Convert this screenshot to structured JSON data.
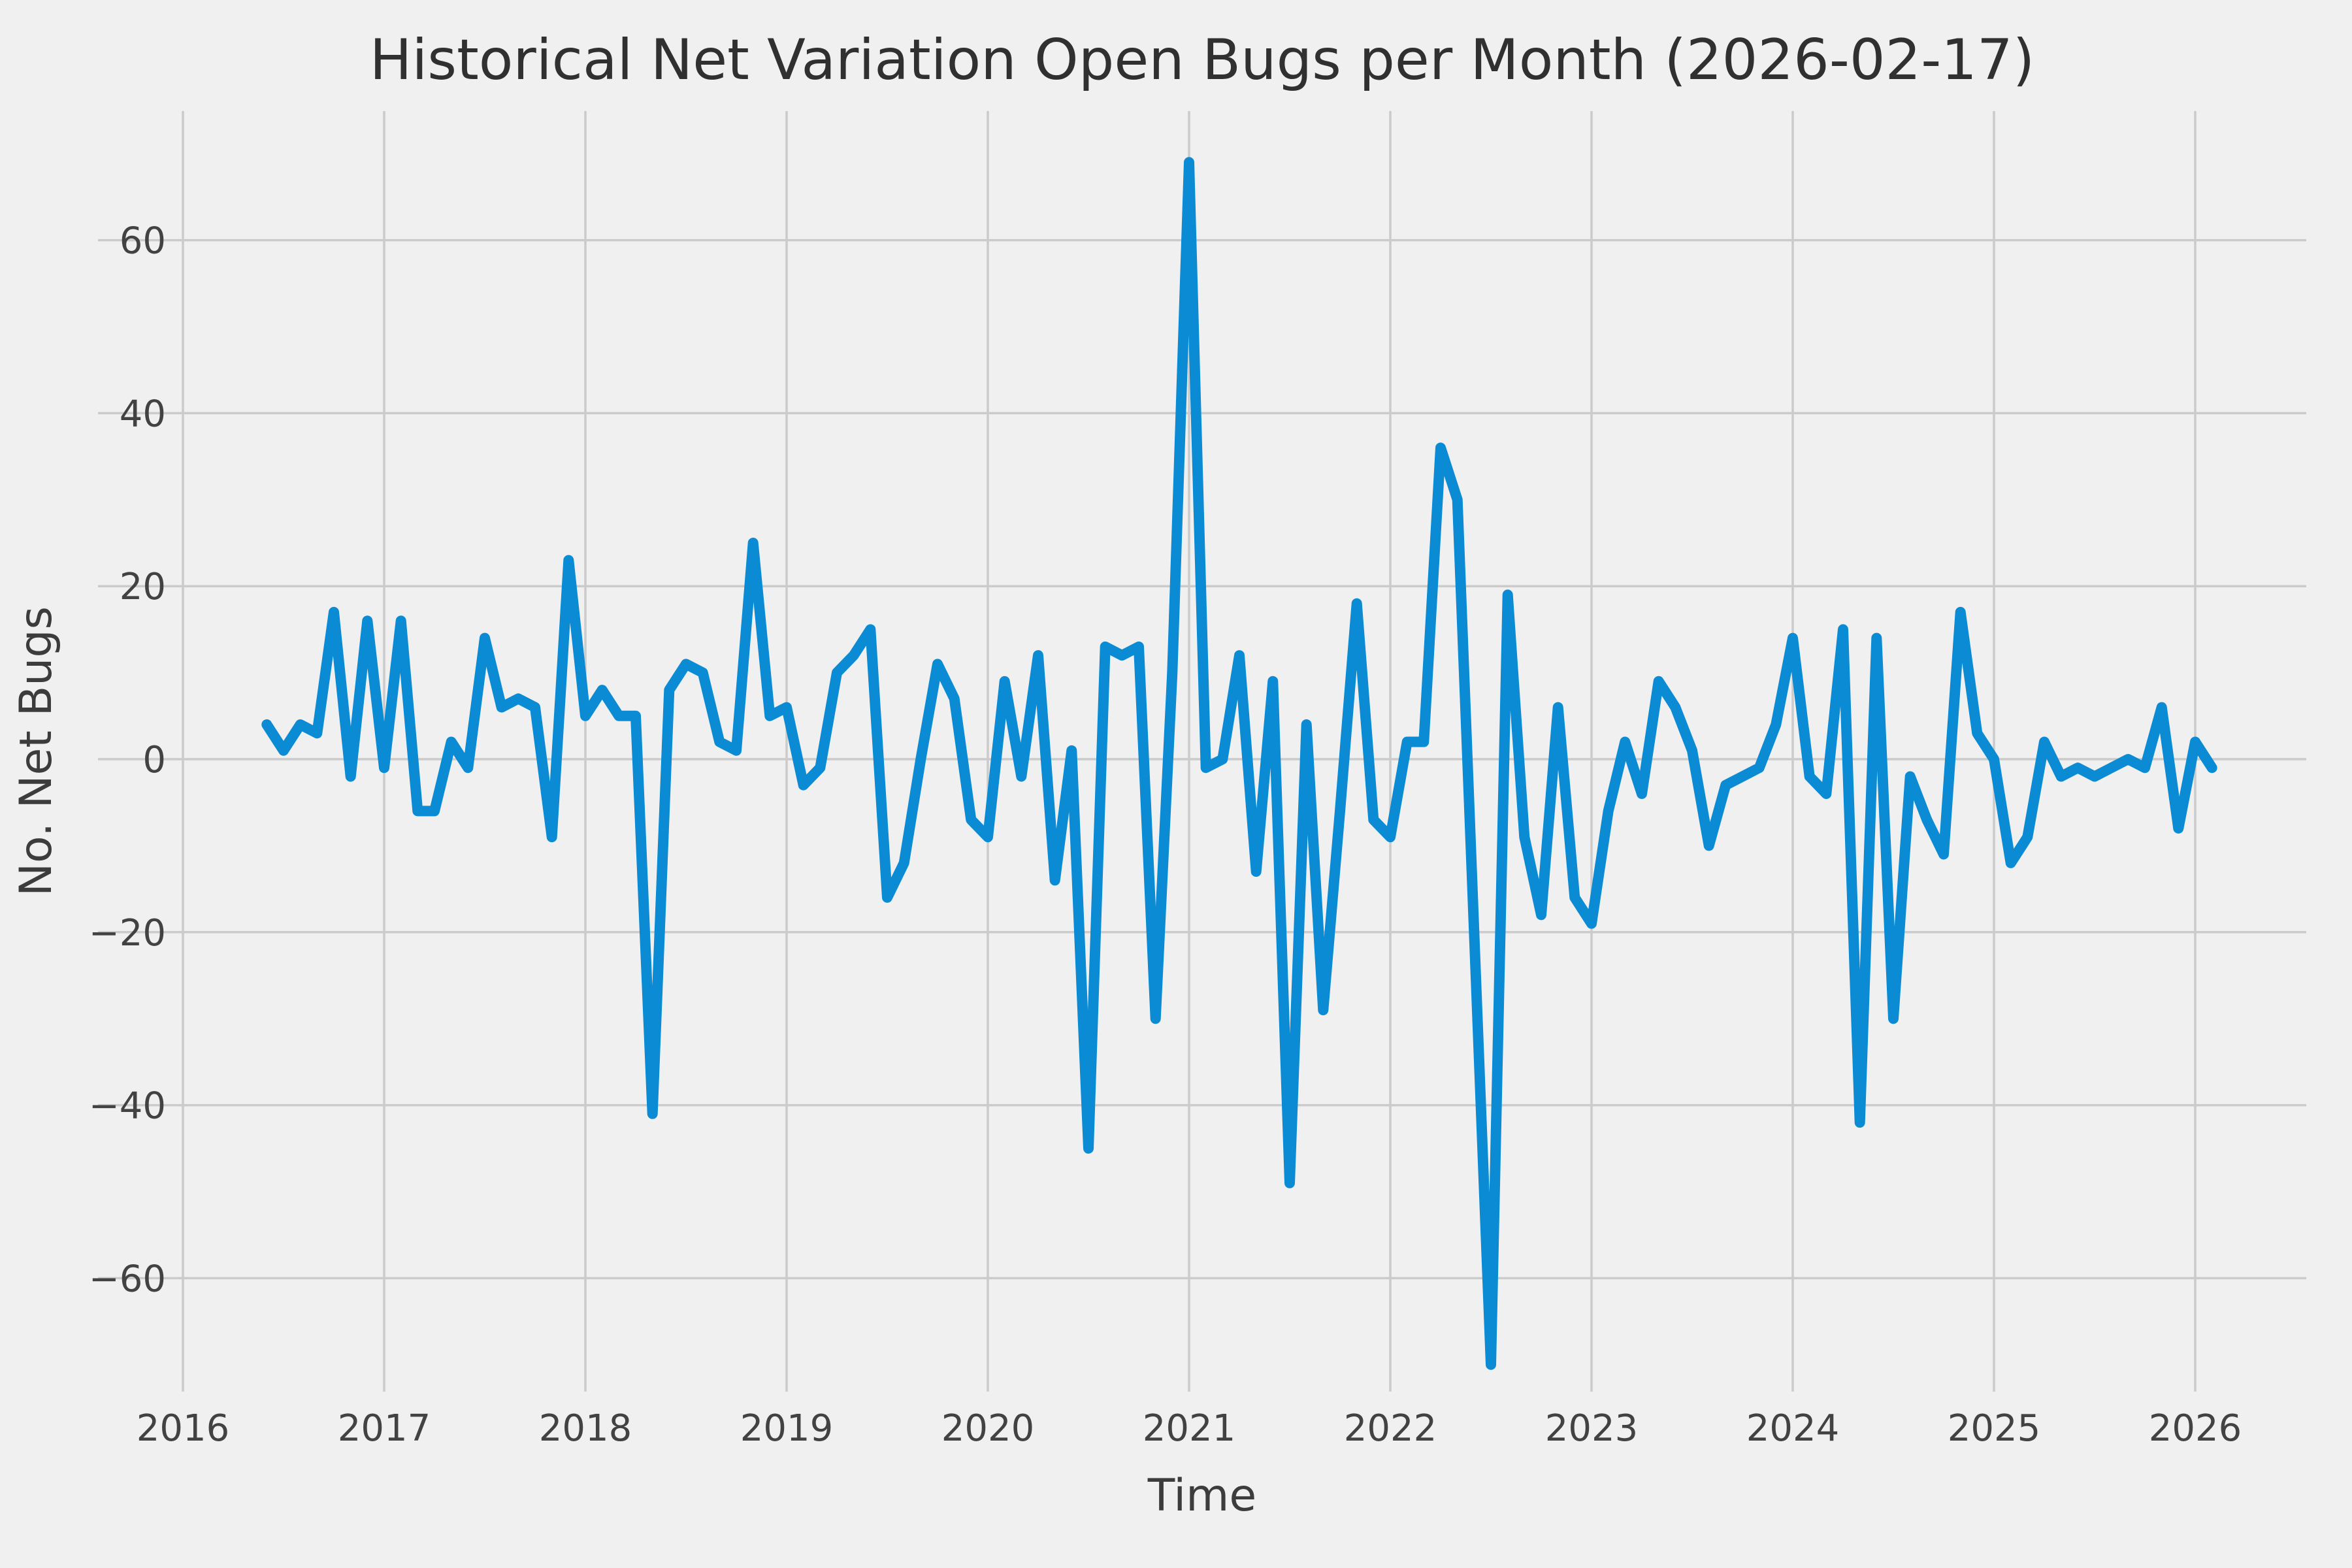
{
  "title": "Historical Net Variation Open Bugs per Month (2026-02-17)",
  "axes": {
    "xlabel": "Time",
    "ylabel": "No. Net Bugs",
    "x_tick_labels": [
      "2016",
      "2017",
      "2018",
      "2019",
      "2020",
      "2021",
      "2022",
      "2023",
      "2024",
      "2025",
      "2026"
    ],
    "y_tick_values": [
      60,
      40,
      20,
      0,
      -20,
      -40,
      -60
    ]
  },
  "style": {
    "background_color": "#f0f0f0",
    "grid_color": "#cbcbcb",
    "line_color": "#0b8bd4",
    "tick_text_color": "#424242",
    "title_color": "#303030"
  },
  "chart_data": {
    "type": "line",
    "title": "Historical Net Variation Open Bugs per Month (2026-02-17)",
    "xlabel": "Time",
    "ylabel": "No. Net Bugs",
    "x_unit": "month",
    "xlim_years": [
      2015.58,
      2026.55
    ],
    "ylim": [
      -73,
      75
    ],
    "grid": true,
    "legend": false,
    "series": [
      {
        "name": "net-variation-open-bugs",
        "color": "#0b8bd4",
        "x": [
          "2016-06",
          "2016-07",
          "2016-08",
          "2016-09",
          "2016-10",
          "2016-11",
          "2016-12",
          "2017-01",
          "2017-02",
          "2017-03",
          "2017-04",
          "2017-05",
          "2017-06",
          "2017-07",
          "2017-08",
          "2017-09",
          "2017-10",
          "2017-11",
          "2017-12",
          "2018-01",
          "2018-02",
          "2018-03",
          "2018-04",
          "2018-05",
          "2018-06",
          "2018-07",
          "2018-08",
          "2018-09",
          "2018-10",
          "2018-11",
          "2018-12",
          "2019-01",
          "2019-02",
          "2019-03",
          "2019-04",
          "2019-05",
          "2019-06",
          "2019-07",
          "2019-08",
          "2019-09",
          "2019-10",
          "2019-11",
          "2019-12",
          "2020-01",
          "2020-02",
          "2020-03",
          "2020-04",
          "2020-05",
          "2020-06",
          "2020-07",
          "2020-08",
          "2020-09",
          "2020-10",
          "2020-11",
          "2020-12",
          "2021-01",
          "2021-02",
          "2021-03",
          "2021-04",
          "2021-05",
          "2021-06",
          "2021-07",
          "2021-08",
          "2021-09",
          "2021-10",
          "2021-11",
          "2021-12",
          "2022-01",
          "2022-02",
          "2022-03",
          "2022-04",
          "2022-05",
          "2022-06",
          "2022-07",
          "2022-08",
          "2022-09",
          "2022-10",
          "2022-11",
          "2022-12",
          "2023-01",
          "2023-02",
          "2023-03",
          "2023-04",
          "2023-05",
          "2023-06",
          "2023-07",
          "2023-08",
          "2023-09",
          "2023-10",
          "2023-11",
          "2023-12",
          "2024-01",
          "2024-02",
          "2024-03",
          "2024-04",
          "2024-05",
          "2024-06",
          "2024-07",
          "2024-08",
          "2024-09",
          "2024-10",
          "2024-11",
          "2024-12",
          "2025-01",
          "2025-02",
          "2025-03",
          "2025-04",
          "2025-05",
          "2025-06",
          "2025-07",
          "2025-08",
          "2025-09",
          "2025-10",
          "2025-11",
          "2025-12",
          "2026-01",
          "2026-02"
        ],
        "values": [
          4,
          1,
          4,
          3,
          17,
          -2,
          16,
          -1,
          16,
          -6,
          -6,
          2,
          -1,
          14,
          6,
          7,
          6,
          -9,
          23,
          5,
          8,
          5,
          5,
          -41,
          8,
          11,
          10,
          2,
          1,
          25,
          5,
          6,
          -3,
          -1,
          10,
          12,
          15,
          -16,
          -12,
          0,
          11,
          7,
          -7,
          -9,
          9,
          -2,
          12,
          -14,
          1,
          -45,
          13,
          12,
          13,
          -30,
          10,
          69,
          -1,
          0,
          12,
          -13,
          9,
          -49,
          4,
          -29,
          -6,
          18,
          -7,
          -9,
          2,
          2,
          36,
          30,
          -20,
          -70,
          19,
          -9,
          -18,
          6,
          -16,
          -19,
          -6,
          2,
          -4,
          9,
          6,
          1,
          -10,
          -3,
          -2,
          -1,
          4,
          14,
          -2,
          -4,
          15,
          -42,
          14,
          -30,
          -2,
          -7,
          -11,
          17,
          3,
          0,
          -12,
          -9,
          2,
          -2,
          -1,
          -2,
          -1,
          0,
          -1,
          6,
          -8,
          2,
          -1
        ]
      }
    ]
  }
}
